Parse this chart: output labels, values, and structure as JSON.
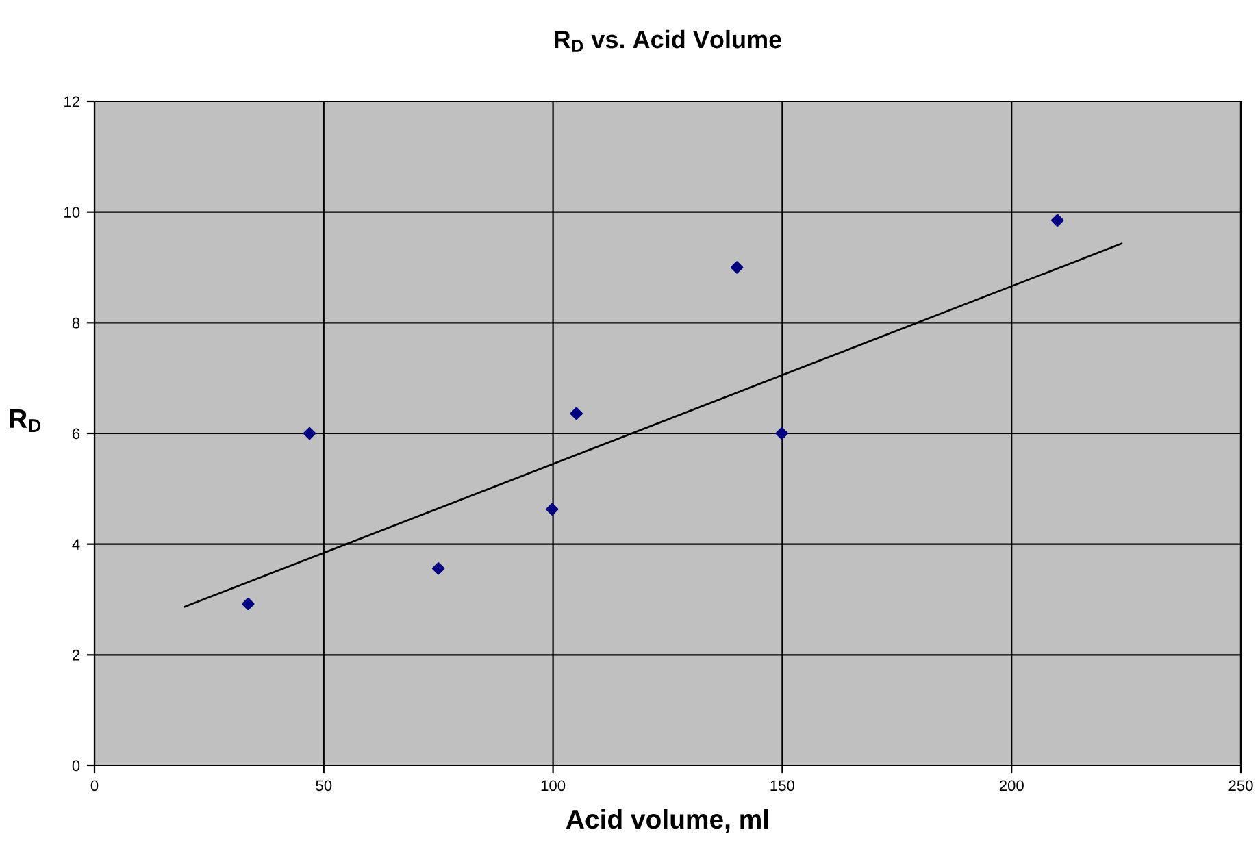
{
  "chart_data": {
    "type": "scatter",
    "title": "R$_{D}$ vs. Acid Volume",
    "xlabel": "Acid volume, ml",
    "ylabel": "R$_{D}$",
    "xlim": [
      0,
      250
    ],
    "xticks": [
      0,
      50,
      100,
      150,
      200,
      250
    ],
    "ylim": [
      0,
      12
    ],
    "yticks": [
      0,
      2,
      4,
      6,
      8,
      10,
      12
    ],
    "grid": true,
    "legend": false,
    "marker": "diamond",
    "series": [
      {
        "color": "#000080",
        "x": [
          33.5,
          46.9,
          75,
          99.8,
          105.1,
          140.1,
          149.9,
          210
        ],
        "values": [
          2.92,
          6.0,
          3.56,
          4.63,
          6.36,
          9.0,
          6.0,
          9.85
        ]
      },
      {
        "type": "line",
        "color": "#000000",
        "marker": "none",
        "x": [
          19.7,
          224
        ],
        "values": [
          2.87,
          9.43
        ]
      }
    ]
  }
}
